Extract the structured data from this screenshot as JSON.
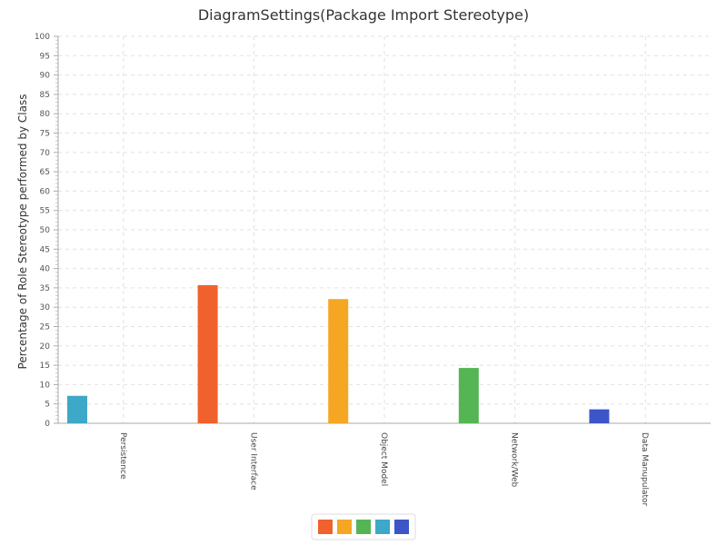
{
  "chart_data": {
    "type": "bar",
    "title": "DiagramSettings(Package Import Stereotype)",
    "xlabel": "",
    "ylabel": "Percentage of Role Stereotype performed by Class",
    "ylim": [
      0,
      100
    ],
    "ytick_step": 5,
    "grid": true,
    "legend_placement": "bottom-center",
    "categories": [
      "Persistence",
      "User Interface",
      "Object Model",
      "Network/Web",
      "Data Manupulator"
    ],
    "series": [
      {
        "color": "#f0612e",
        "values": [
          0,
          35.7,
          0,
          0,
          0
        ]
      },
      {
        "color": "#f5a623",
        "values": [
          0,
          0,
          32.1,
          0,
          0
        ]
      },
      {
        "color": "#55b555",
        "values": [
          0,
          0,
          0,
          14.3,
          0
        ]
      },
      {
        "color": "#3ea8c8",
        "values": [
          7.1,
          0,
          0,
          0,
          0
        ]
      },
      {
        "color": "#3c56c8",
        "values": [
          0,
          0,
          0,
          0,
          3.6
        ]
      }
    ]
  }
}
